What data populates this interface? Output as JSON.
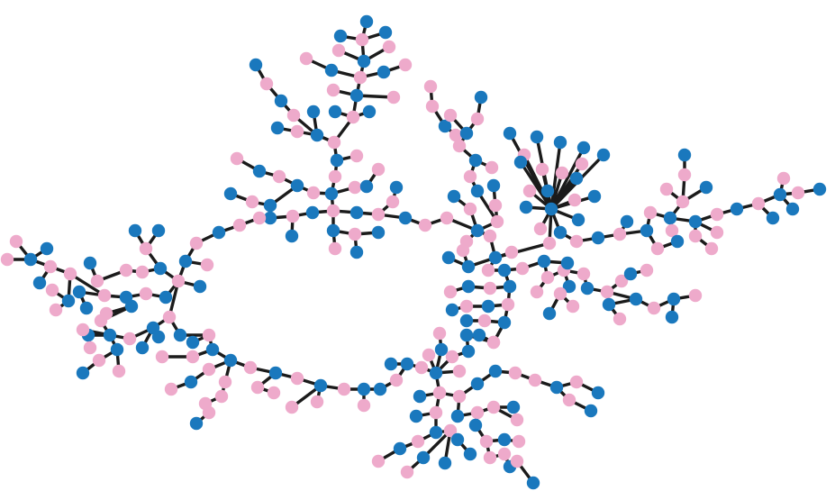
{
  "colors": {
    "background": "#ffffff",
    "blue_node": "#1a78bd",
    "pink_node": "#eeaacb",
    "edge": "#1b1b1b"
  },
  "legend": []
}
